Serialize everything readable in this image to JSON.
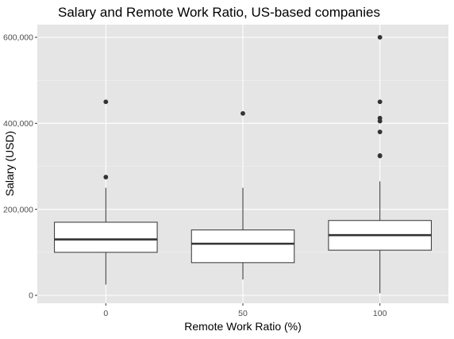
{
  "chart_data": {
    "type": "boxplot",
    "title": "Salary and Remote Work Ratio, US-based companies",
    "xlabel": "Remote Work Ratio (%)",
    "ylabel": "Salary (USD)",
    "categories": [
      "0",
      "50",
      "100"
    ],
    "ylim": [
      -5000,
      630000
    ],
    "yticks": [
      0,
      200000,
      400000,
      600000
    ],
    "ytick_labels": [
      "0",
      "200,000",
      "400,000",
      "600,000"
    ],
    "grid": true,
    "boxes": [
      {
        "category": "0",
        "lower_whisker": 25000,
        "q1": 100000,
        "median": 130000,
        "q3": 170000,
        "upper_whisker": 250000,
        "outliers": [
          275000,
          450000
        ]
      },
      {
        "category": "50",
        "lower_whisker": 37000,
        "q1": 76000,
        "median": 120000,
        "q3": 152000,
        "upper_whisker": 250000,
        "outliers": [
          423000
        ]
      },
      {
        "category": "100",
        "lower_whisker": 5000,
        "q1": 105000,
        "median": 140000,
        "q3": 174000,
        "upper_whisker": 265000,
        "outliers": [
          324000,
          325000,
          380000,
          405000,
          412000,
          450000,
          600000
        ]
      }
    ]
  }
}
